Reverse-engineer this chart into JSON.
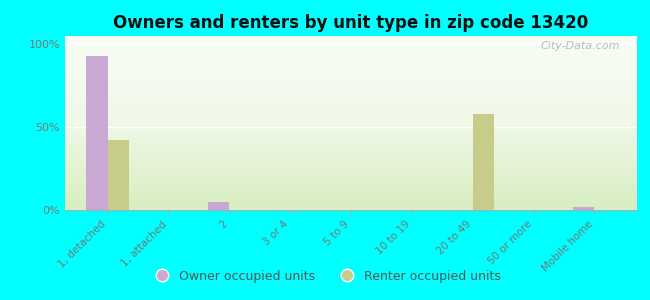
{
  "title": "Owners and renters by unit type in zip code 13420",
  "categories": [
    "1, detached",
    "1, attached",
    "2",
    "3 or 4",
    "5 to 9",
    "10 to 19",
    "20 to 49",
    "50 or more",
    "Mobile home"
  ],
  "owner_values": [
    93,
    0,
    5,
    0,
    0,
    0,
    0,
    0,
    2
  ],
  "renter_values": [
    42,
    0,
    0,
    0,
    0,
    0,
    58,
    0,
    0
  ],
  "owner_color": "#c9a8d4",
  "renter_color": "#c8cc8a",
  "background_fig": "#00ffff",
  "ylim": [
    0,
    105
  ],
  "yticks": [
    0,
    50,
    100
  ],
  "ytick_labels": [
    "0%",
    "50%",
    "100%"
  ],
  "legend_owner": "Owner occupied units",
  "legend_renter": "Renter occupied units",
  "bar_width": 0.35,
  "watermark": "City-Data.com"
}
